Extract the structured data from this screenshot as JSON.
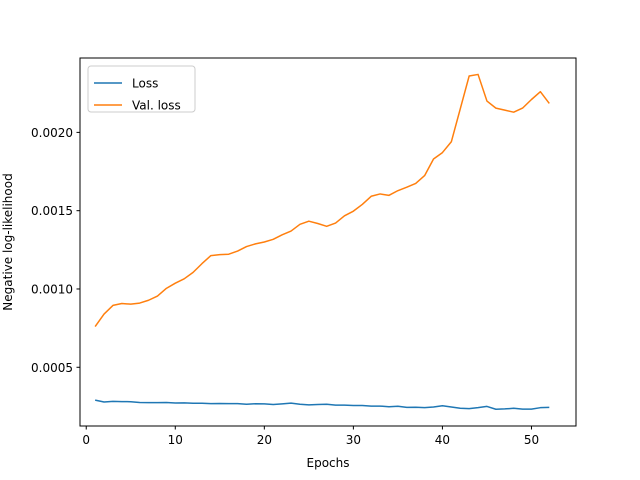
{
  "chart_data": {
    "type": "line",
    "xlabel": "Epochs",
    "ylabel": "Negative log-likelihood",
    "xlim": [
      -0.7,
      55
    ],
    "ylim": [
      0.000125,
      0.002475
    ],
    "xticks": [
      0,
      10,
      20,
      30,
      40,
      50
    ],
    "xtick_labels": [
      "0",
      "10",
      "20",
      "30",
      "40",
      "50"
    ],
    "yticks": [
      0.0005,
      0.001,
      0.0015,
      0.002
    ],
    "ytick_labels": [
      "0.0005",
      "0.0010",
      "0.0015",
      "0.0020"
    ],
    "grid": false,
    "legend_position": "upper-left",
    "x": [
      1,
      2,
      3,
      4,
      5,
      6,
      7,
      8,
      9,
      10,
      11,
      12,
      13,
      14,
      15,
      16,
      17,
      18,
      19,
      20,
      21,
      22,
      23,
      24,
      25,
      26,
      27,
      28,
      29,
      30,
      31,
      32,
      33,
      34,
      35,
      36,
      37,
      38,
      39,
      40,
      41,
      42,
      43,
      44,
      45,
      46,
      47,
      48,
      49,
      50,
      51,
      52
    ],
    "series": [
      {
        "name": "Loss",
        "color": "#1f77b4",
        "values": [
          0.00029,
          0.000278,
          0.000282,
          0.000281,
          0.00028,
          0.000275,
          0.000274,
          0.000274,
          0.000275,
          0.000272,
          0.000273,
          0.00027,
          0.00027,
          0.000268,
          0.000269,
          0.000268,
          0.000268,
          0.000264,
          0.000267,
          0.000266,
          0.000262,
          0.000266,
          0.000271,
          0.000264,
          0.00026,
          0.000262,
          0.000264,
          0.000258,
          0.000258,
          0.000256,
          0.000256,
          0.000252,
          0.000252,
          0.000248,
          0.000251,
          0.000244,
          0.000245,
          0.000242,
          0.000246,
          0.000254,
          0.000246,
          0.000238,
          0.000236,
          0.000242,
          0.00025,
          0.000232,
          0.000234,
          0.000238,
          0.000233,
          0.000233,
          0.000242,
          0.000244
        ]
      },
      {
        "name": "Val. loss",
        "color": "#ff7f0e",
        "values": [
          0.00076,
          0.00084,
          0.000895,
          0.000907,
          0.000903,
          0.00091,
          0.000928,
          0.000955,
          0.001004,
          0.001037,
          0.001065,
          0.001106,
          0.001162,
          0.001213,
          0.001219,
          0.001222,
          0.001242,
          0.001271,
          0.001288,
          0.0013,
          0.001317,
          0.001346,
          0.00137,
          0.001413,
          0.001433,
          0.001418,
          0.0014,
          0.001421,
          0.001467,
          0.001497,
          0.00154,
          0.001592,
          0.001607,
          0.001598,
          0.001628,
          0.00165,
          0.001674,
          0.001724,
          0.00183,
          0.001871,
          0.00194,
          0.00215,
          0.00236,
          0.00237,
          0.0022,
          0.002155,
          0.002142,
          0.002129,
          0.002155,
          0.00221,
          0.00226,
          0.002185
        ]
      }
    ]
  }
}
